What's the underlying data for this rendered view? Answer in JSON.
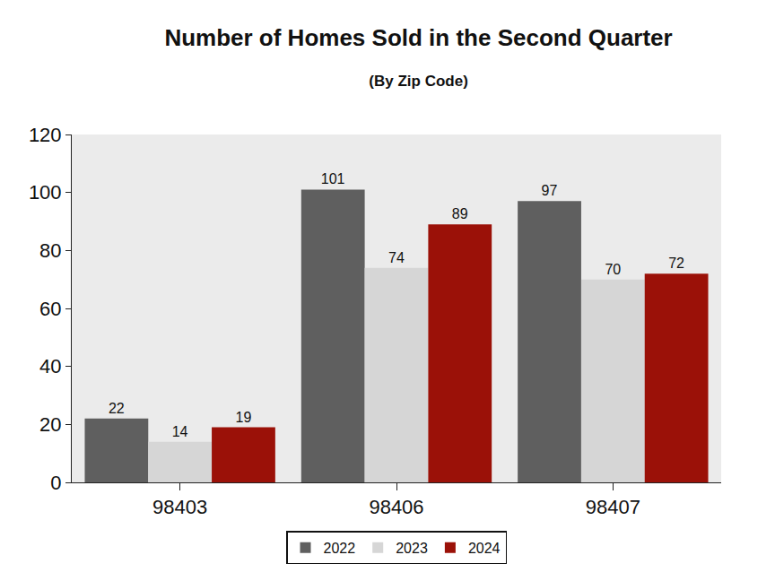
{
  "chart_data": {
    "type": "bar",
    "title": "Number of Homes Sold in the Second Quarter",
    "subtitle": "(By Zip Code)",
    "categories": [
      "98403",
      "98406",
      "98407"
    ],
    "series": [
      {
        "name": "2022",
        "color": "#5f5f5f",
        "values": [
          22,
          101,
          97
        ]
      },
      {
        "name": "2023",
        "color": "#d6d6d6",
        "values": [
          14,
          74,
          70
        ]
      },
      {
        "name": "2024",
        "color": "#9b1108",
        "values": [
          19,
          89,
          72
        ]
      }
    ],
    "ylim": [
      0,
      120
    ],
    "yticks": [
      0,
      20,
      40,
      60,
      80,
      100,
      120
    ],
    "grid": false,
    "legend": "bottom",
    "data_labels": true
  }
}
